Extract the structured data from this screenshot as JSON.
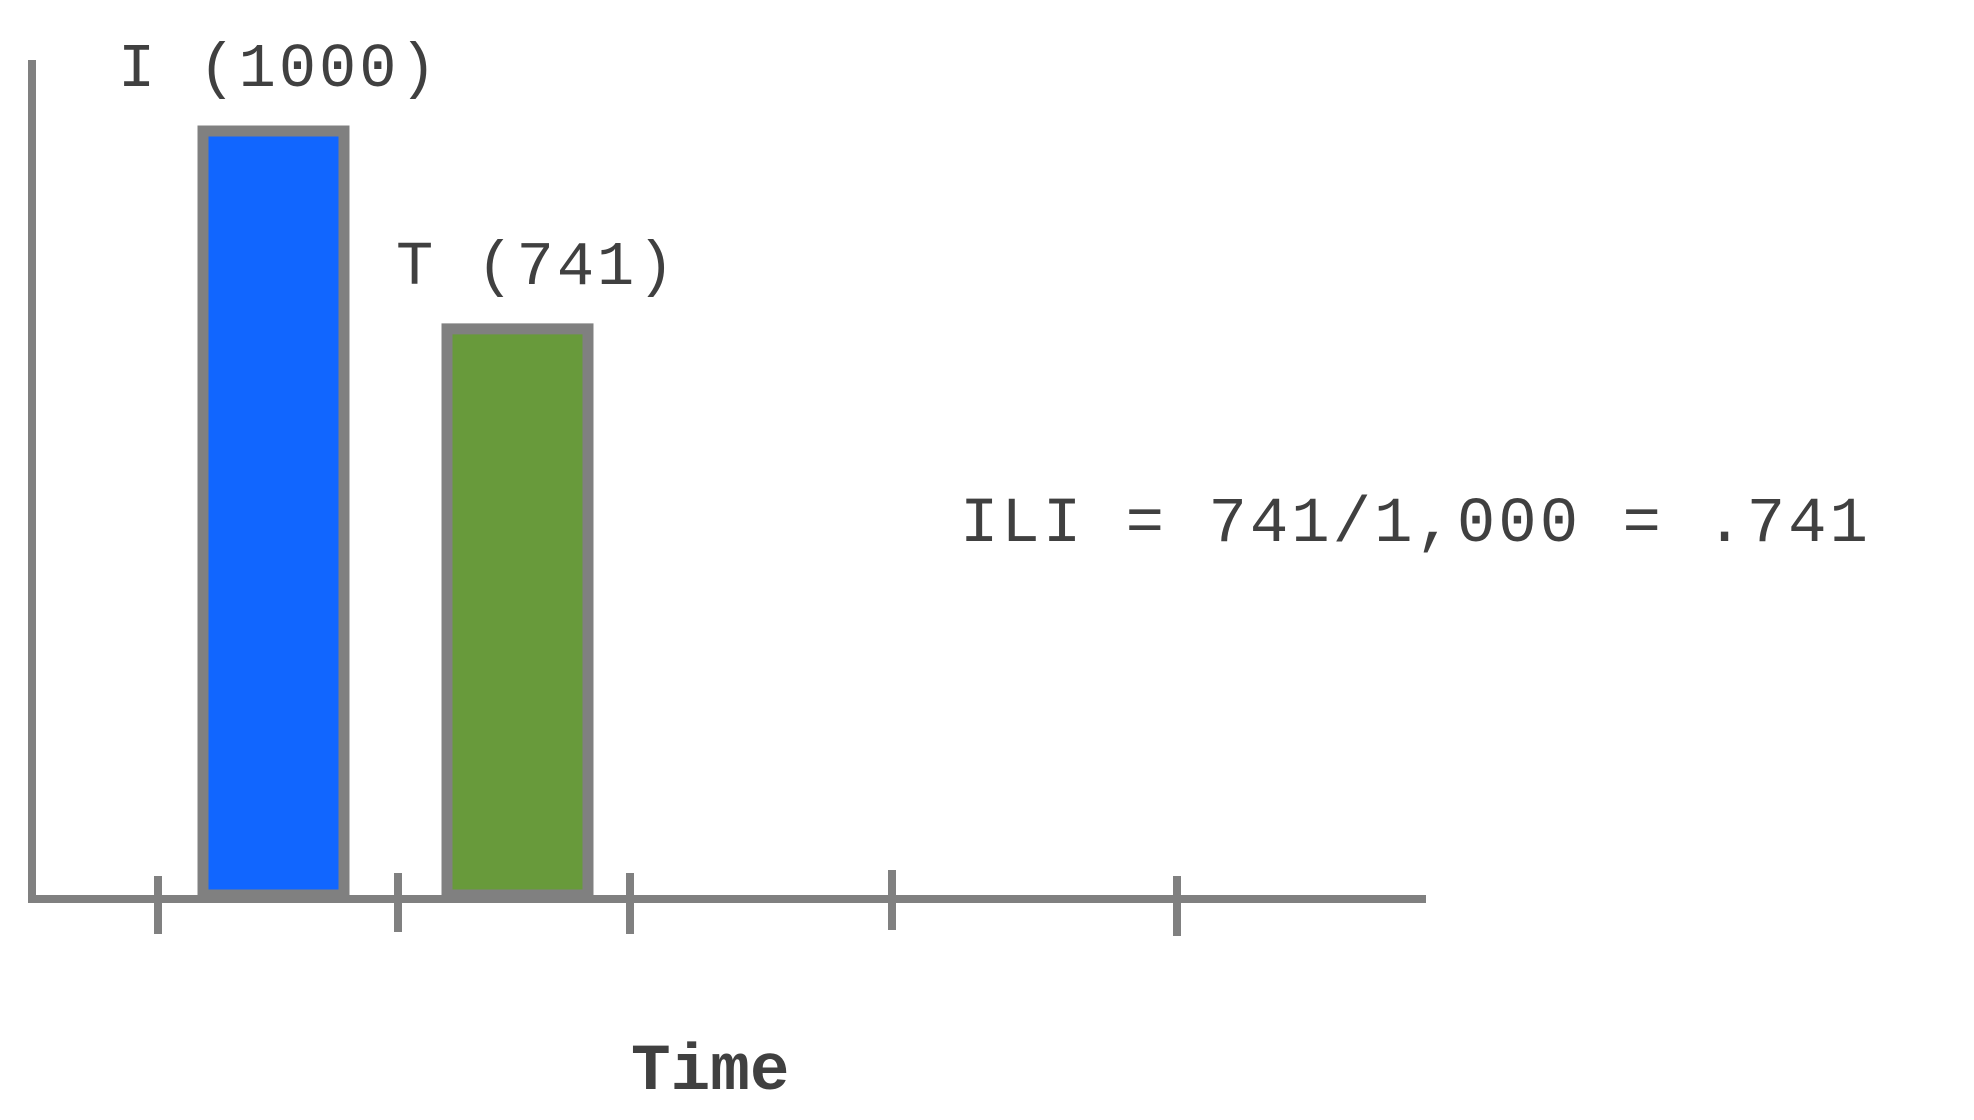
{
  "chart_data": {
    "type": "bar",
    "categories": [
      "I",
      "T"
    ],
    "values": [
      1000,
      741
    ],
    "bar_labels": [
      "I (1000)",
      "T (741)"
    ],
    "colors": [
      "#1166ff",
      "#689a3b"
    ],
    "axis_color": "#808080",
    "title": "",
    "xlabel": "Time",
    "ylabel": "",
    "ylim": [
      0,
      1000
    ],
    "grid": false,
    "annotation": "ILI = 741/1,000 = .741"
  }
}
